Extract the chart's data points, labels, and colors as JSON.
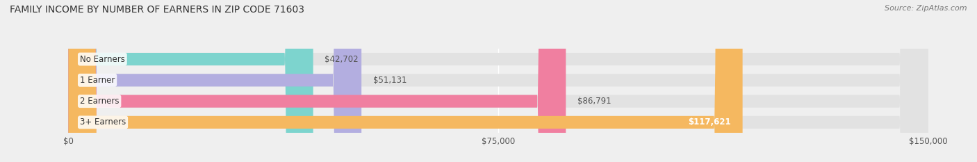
{
  "title": "FAMILY INCOME BY NUMBER OF EARNERS IN ZIP CODE 71603",
  "source": "Source: ZipAtlas.com",
  "categories": [
    "No Earners",
    "1 Earner",
    "2 Earners",
    "3+ Earners"
  ],
  "values": [
    42702,
    51131,
    86791,
    117621
  ],
  "bar_colors": [
    "#7dd4ce",
    "#b3aee0",
    "#f07fa0",
    "#f5b860"
  ],
  "bar_labels": [
    "$42,702",
    "$51,131",
    "$86,791",
    "$117,621"
  ],
  "xlim": [
    0,
    150000
  ],
  "xticks": [
    0,
    75000,
    150000
  ],
  "xticklabels": [
    "$0",
    "$75,000",
    "$150,000"
  ],
  "bg_color": "#efefef",
  "bar_bg_color": "#e2e2e2",
  "title_fontsize": 10,
  "label_fontsize": 8.5,
  "source_fontsize": 8
}
